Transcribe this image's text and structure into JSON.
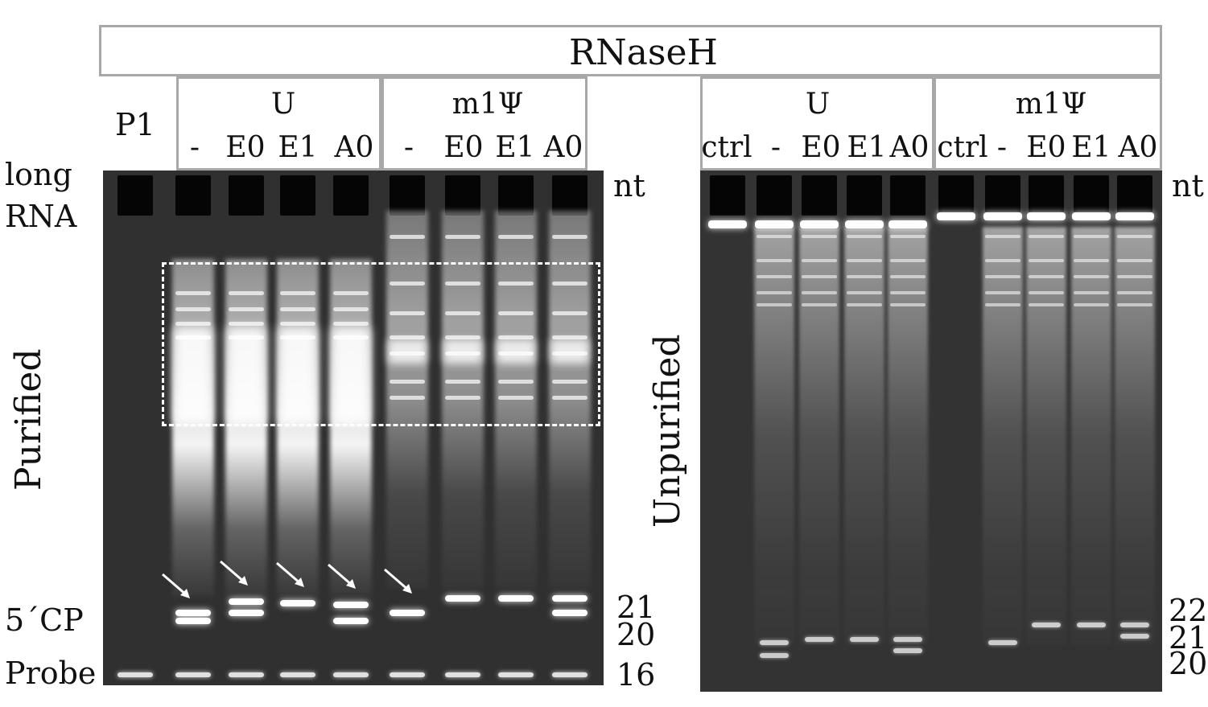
{
  "header": {
    "title": "RNaseH"
  },
  "left_gel": {
    "p1_label": "P1",
    "group_u": {
      "name": "U",
      "lanes": [
        "-",
        "E0",
        "E1",
        "A0"
      ]
    },
    "group_m1psi": {
      "name": "m1Ψ",
      "lanes": [
        "-",
        "E0",
        "E1",
        "A0"
      ]
    },
    "side_labels": {
      "long_rna_1": "long",
      "long_rna_2": "RNA",
      "five_cp": "5´CP",
      "probe": "Probe",
      "vertical": "Purified"
    },
    "size_markers": {
      "nt": "nt",
      "m21": "21",
      "m20": "20",
      "m16": "16"
    }
  },
  "right_gel": {
    "group_u": {
      "name": "U",
      "lanes": [
        "ctrl",
        "-",
        "E0",
        "E1",
        "A0"
      ]
    },
    "group_m1psi": {
      "name": "m1Ψ",
      "lanes": [
        "ctrl",
        "-",
        "E0",
        "E1",
        "A0"
      ]
    },
    "side_labels": {
      "vertical": "Unpurified"
    },
    "size_markers": {
      "nt": "nt",
      "m22": "22",
      "m21": "21",
      "m20": "20"
    }
  },
  "colors": {
    "box_border": "#a8a8a8",
    "gel_background": "#303030",
    "band": "#ffffff"
  }
}
